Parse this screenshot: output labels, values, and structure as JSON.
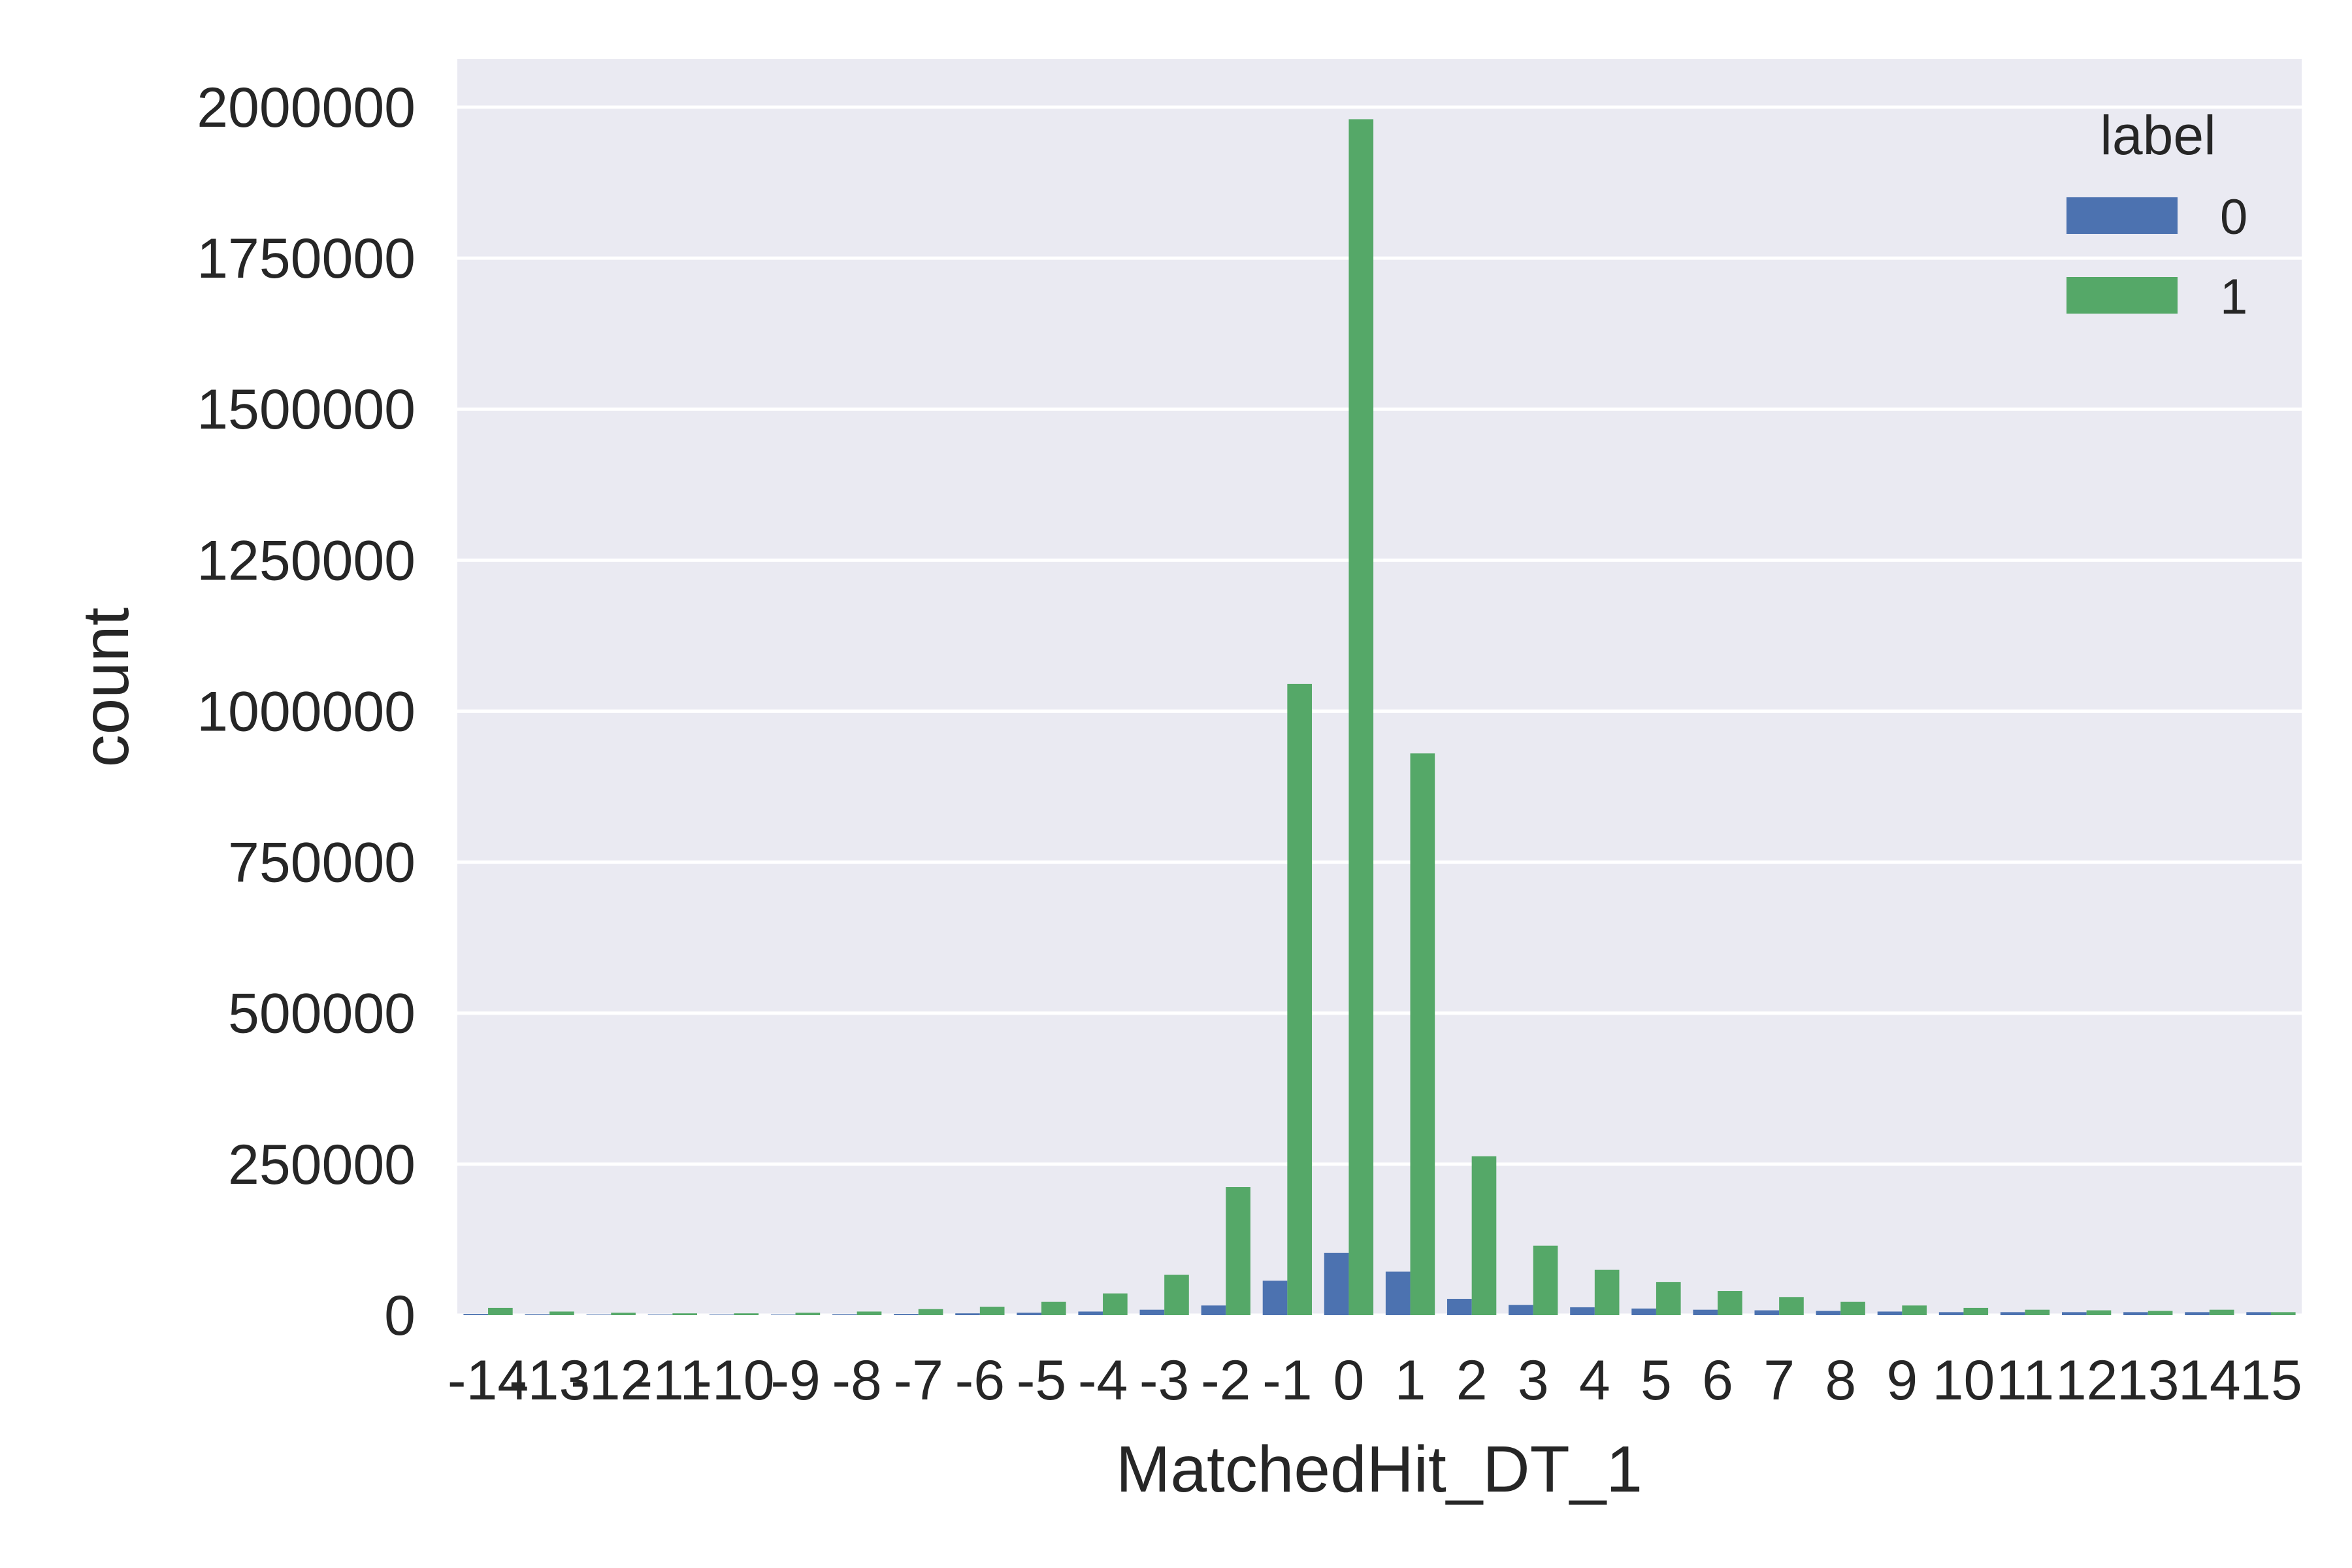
{
  "chart_data": {
    "type": "bar",
    "xlabel": "MatchedHit_DT_1",
    "ylabel": "count",
    "ylim": [
      0,
      2080000
    ],
    "yticks": [
      "0",
      "250000",
      "500000",
      "750000",
      "1000000",
      "1250000",
      "1500000",
      "1750000",
      "2000000"
    ],
    "ytick_values": [
      0,
      250000,
      500000,
      750000,
      1000000,
      1250000,
      1500000,
      1750000,
      2000000
    ],
    "grid": true,
    "legend": {
      "title": "label",
      "position": "top-right"
    },
    "categories": [
      "-14",
      "-13",
      "-12",
      "-11",
      "-10",
      "-9",
      "-8",
      "-7",
      "-6",
      "-5",
      "-4",
      "-3",
      "-2",
      "-1",
      "0",
      "1",
      "2",
      "3",
      "4",
      "5",
      "6",
      "7",
      "8",
      "9",
      "10",
      "11",
      "12",
      "13",
      "14",
      "15"
    ],
    "series": [
      {
        "name": "0",
        "color": "#4c72b0",
        "values": [
          2000,
          1500,
          1000,
          1000,
          1000,
          1000,
          1500,
          2000,
          3000,
          4000,
          6000,
          9000,
          16000,
          57000,
          103000,
          72000,
          27000,
          17000,
          13000,
          11000,
          9000,
          8000,
          7000,
          6000,
          5000,
          5000,
          5000,
          5000,
          5000,
          5000
        ]
      },
      {
        "name": "1",
        "color": "#55a868",
        "values": [
          12000,
          6000,
          4000,
          3000,
          3000,
          4000,
          6000,
          10000,
          14000,
          22000,
          36000,
          67000,
          212000,
          1045000,
          1980000,
          930000,
          263000,
          115000,
          75000,
          55000,
          40000,
          30000,
          22000,
          16000,
          12000,
          9000,
          8000,
          7000,
          9000,
          5000
        ]
      }
    ]
  }
}
